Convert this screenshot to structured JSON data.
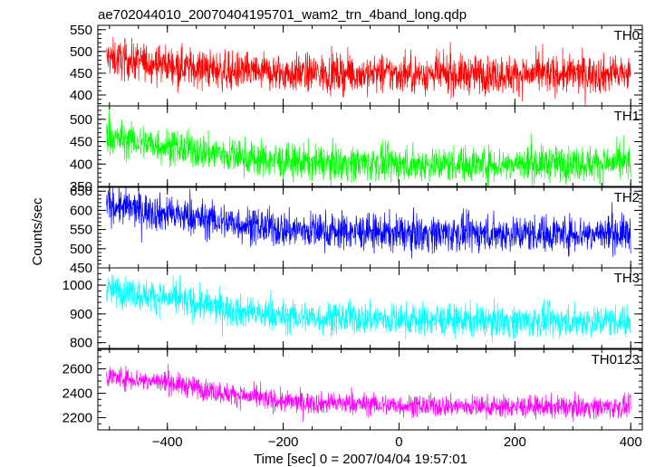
{
  "chart_data": {
    "type": "line",
    "title": "ae702044010_20070404195701_wam2_trn_4band_long.qdp",
    "xlabel": "Time [sec] 0 = 2007/04/04 19:57:01",
    "ylabel": "Counts/sec",
    "xlim": [
      -520,
      420
    ],
    "x_ticks": [
      -400,
      -200,
      0,
      200,
      400
    ],
    "x_tick_labels": [
      "−400",
      "−200",
      "0",
      "200",
      "400"
    ],
    "x_minor_step": 50,
    "x_data_range": [
      -505,
      400
    ],
    "panels": [
      {
        "name": "TH0",
        "color": "#ff0000",
        "ylim": [
          375,
          560
        ],
        "y_ticks": [
          400,
          450,
          500,
          550
        ],
        "y_minor_step": 10,
        "trend": [
          [
            -505,
            485
          ],
          [
            -400,
            470
          ],
          [
            -300,
            455
          ],
          [
            -200,
            450
          ],
          [
            0,
            448
          ],
          [
            200,
            447
          ],
          [
            400,
            448
          ]
        ],
        "noise": 22
      },
      {
        "name": "TH1",
        "color": "#00ff00",
        "ylim": [
          350,
          530
        ],
        "y_ticks": [
          350,
          400,
          450,
          500
        ],
        "y_minor_step": 10,
        "trend": [
          [
            -505,
            460
          ],
          [
            -400,
            440
          ],
          [
            -300,
            420
          ],
          [
            -200,
            405
          ],
          [
            0,
            400
          ],
          [
            200,
            400
          ],
          [
            400,
            402
          ]
        ],
        "noise": 20
      },
      {
        "name": "TH2",
        "color": "#0000ff",
        "ylim": [
          450,
          660
        ],
        "y_ticks": [
          450,
          500,
          550,
          600,
          650
        ],
        "y_minor_step": 10,
        "trend": [
          [
            -505,
            615
          ],
          [
            -400,
            590
          ],
          [
            -300,
            570
          ],
          [
            -200,
            550
          ],
          [
            0,
            540
          ],
          [
            200,
            540
          ],
          [
            400,
            540
          ]
        ],
        "noise": 24
      },
      {
        "name": "TH3",
        "color": "#00ffff",
        "ylim": [
          780,
          1060
        ],
        "y_ticks": [
          800,
          900,
          1000
        ],
        "y_minor_step": 20,
        "trend": [
          [
            -505,
            985
          ],
          [
            -400,
            955
          ],
          [
            -300,
            915
          ],
          [
            -200,
            890
          ],
          [
            0,
            880
          ],
          [
            200,
            875
          ],
          [
            400,
            875
          ]
        ],
        "noise": 28
      },
      {
        "name": "TH0123",
        "color": "#ff00ff",
        "ylim": [
          2100,
          2760
        ],
        "y_ticks": [
          2200,
          2400,
          2600
        ],
        "y_minor_step": 50,
        "trend": [
          [
            -505,
            2540
          ],
          [
            -400,
            2490
          ],
          [
            -300,
            2400
          ],
          [
            -200,
            2330
          ],
          [
            0,
            2300
          ],
          [
            200,
            2290
          ],
          [
            400,
            2285
          ]
        ],
        "noise": 45
      }
    ]
  }
}
